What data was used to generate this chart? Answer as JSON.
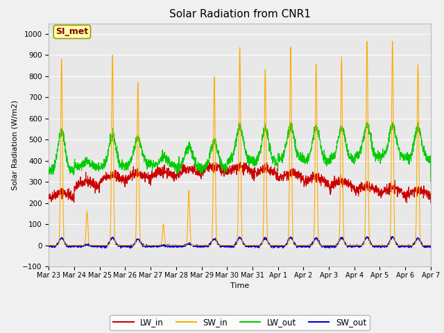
{
  "title": "Solar Radiation from CNR1",
  "xlabel": "Time",
  "ylabel": "Solar Radiation (W/m2)",
  "ylim": [
    -100,
    1050
  ],
  "yticks": [
    -100,
    0,
    100,
    200,
    300,
    400,
    500,
    600,
    700,
    800,
    900,
    1000
  ],
  "legend_labels": [
    "LW_in",
    "SW_in",
    "LW_out",
    "SW_out"
  ],
  "lw_in_color": "#cc0000",
  "sw_in_color": "#ffaa00",
  "lw_out_color": "#00cc00",
  "sw_out_color": "#0000cc",
  "annotation_text": "SI_met",
  "annotation_bg": "#ffffaa",
  "annotation_border": "#999900",
  "fig_bg": "#f0f0f0",
  "plot_bg": "#e8e8e8",
  "grid_color": "#ffffff",
  "n_days": 15,
  "start_day": 23,
  "title_fontsize": 11
}
